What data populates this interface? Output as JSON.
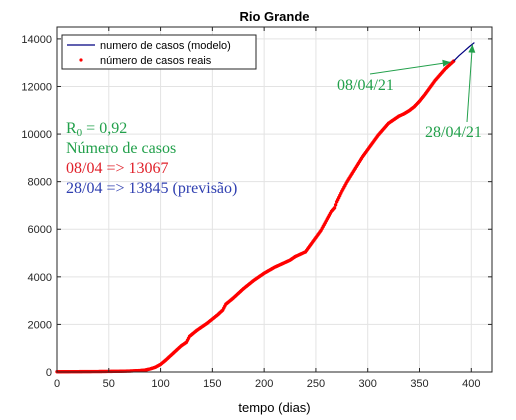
{
  "chart_data": {
    "type": "line",
    "title": "Rio Grande",
    "xlabel": "tempo (dias)",
    "ylabel": "",
    "xlim": [
      0,
      420
    ],
    "ylim": [
      0,
      14500
    ],
    "xticks": [
      0,
      50,
      100,
      150,
      200,
      250,
      300,
      350,
      400
    ],
    "yticks": [
      0,
      2000,
      4000,
      6000,
      8000,
      10000,
      12000,
      14000
    ],
    "grid": true,
    "legend_position": "top-center",
    "series": [
      {
        "name": "numero de casos (modelo)",
        "style": "line",
        "color": "#000080",
        "points": [
          [
            383,
            13067
          ],
          [
            388,
            13290
          ],
          [
            393,
            13480
          ],
          [
            398,
            13670
          ],
          [
            403,
            13845
          ]
        ]
      },
      {
        "name": "número de casos reais",
        "style": "dots",
        "color": "#ff0000",
        "points": [
          [
            0,
            10
          ],
          [
            20,
            15
          ],
          [
            40,
            20
          ],
          [
            60,
            30
          ],
          [
            70,
            40
          ],
          [
            80,
            60
          ],
          [
            85,
            80
          ],
          [
            90,
            130
          ],
          [
            95,
            200
          ],
          [
            100,
            320
          ],
          [
            105,
            500
          ],
          [
            110,
            700
          ],
          [
            115,
            900
          ],
          [
            120,
            1100
          ],
          [
            125,
            1250
          ],
          [
            128,
            1500
          ],
          [
            135,
            1750
          ],
          [
            145,
            2050
          ],
          [
            155,
            2400
          ],
          [
            160,
            2600
          ],
          [
            163,
            2850
          ],
          [
            170,
            3100
          ],
          [
            180,
            3500
          ],
          [
            190,
            3850
          ],
          [
            200,
            4150
          ],
          [
            210,
            4400
          ],
          [
            220,
            4600
          ],
          [
            225,
            4700
          ],
          [
            230,
            4850
          ],
          [
            240,
            5050
          ],
          [
            245,
            5350
          ],
          [
            250,
            5650
          ],
          [
            255,
            5950
          ],
          [
            260,
            6350
          ],
          [
            265,
            6750
          ],
          [
            268,
            6900
          ],
          [
            270,
            7150
          ],
          [
            275,
            7600
          ],
          [
            280,
            8000
          ],
          [
            285,
            8350
          ],
          [
            290,
            8700
          ],
          [
            295,
            9050
          ],
          [
            300,
            9350
          ],
          [
            305,
            9650
          ],
          [
            310,
            9950
          ],
          [
            315,
            10200
          ],
          [
            320,
            10450
          ],
          [
            325,
            10600
          ],
          [
            330,
            10750
          ],
          [
            335,
            10850
          ],
          [
            340,
            10980
          ],
          [
            345,
            11150
          ],
          [
            350,
            11380
          ],
          [
            355,
            11650
          ],
          [
            360,
            11950
          ],
          [
            365,
            12250
          ],
          [
            370,
            12500
          ],
          [
            375,
            12750
          ],
          [
            380,
            12950
          ],
          [
            383,
            13067
          ]
        ]
      }
    ],
    "annotations": [
      {
        "text": "08/04/21",
        "color": "#22a04b",
        "at": [
          383,
          13067
        ]
      },
      {
        "text": "28/04/21",
        "color": "#22a04b",
        "at": [
          403,
          13845
        ]
      }
    ]
  },
  "info_box": {
    "r0_prefix": "R",
    "r0_sub": "0",
    "r0_value": " = 0,92",
    "heading": "Número de casos",
    "line_real": "08/04 => 13067",
    "line_pred": "28/04 => 13845 (previsão)",
    "color_green": "#22a04b",
    "color_red": "#e0202a",
    "color_blue": "#2f3fb0"
  }
}
